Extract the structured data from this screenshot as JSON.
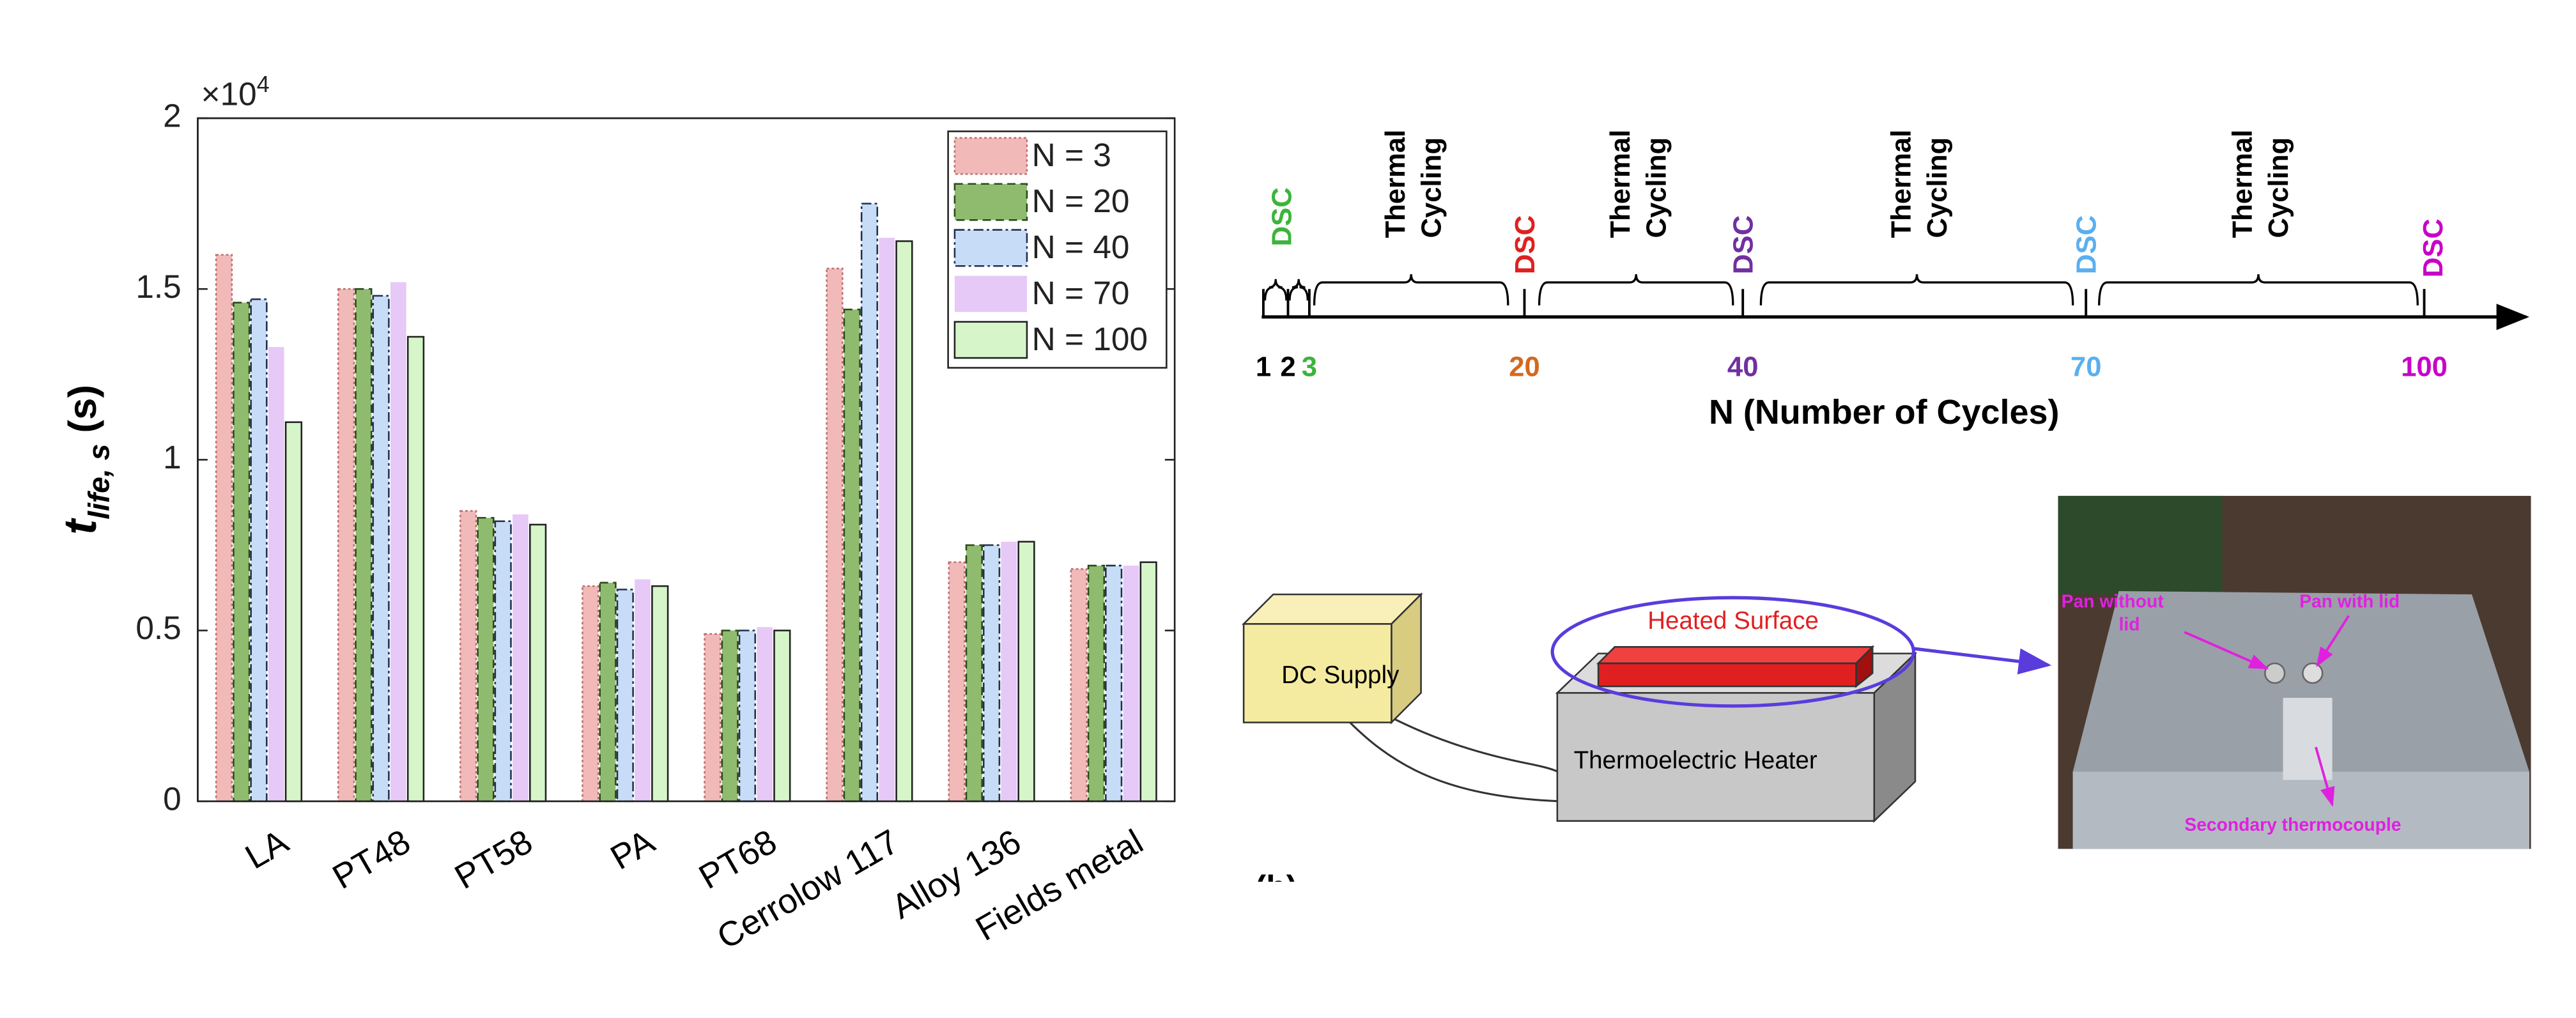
{
  "chart_data": {
    "type": "bar",
    "ylabel": {
      "main": "t",
      "sub": "life, s",
      "unit": " (s)"
    },
    "y_multiplier": {
      "base": "×10",
      "exponent": "4"
    },
    "categories": [
      "LA",
      "PT48",
      "PT58",
      "PA",
      "PT68",
      "Cerrolow 117",
      "Alloy 136",
      "Fields metal"
    ],
    "series": [
      {
        "name": "N = 3",
        "color": "#f2b9b9",
        "edge": "#c07070",
        "line_style": "dotted",
        "values": [
          1.6,
          1.5,
          0.85,
          0.63,
          0.49,
          1.56,
          0.7,
          0.68
        ]
      },
      {
        "name": "N = 20",
        "color": "#8fbb6e",
        "edge": "#2a4a1a",
        "line_style": "dashed",
        "values": [
          1.46,
          1.5,
          0.83,
          0.64,
          0.5,
          1.44,
          0.75,
          0.69
        ]
      },
      {
        "name": "N = 40",
        "color": "#c7dcf6",
        "edge": "#203050",
        "line_style": "dashdot",
        "values": [
          1.47,
          1.48,
          0.82,
          0.62,
          0.5,
          1.75,
          0.75,
          0.69
        ]
      },
      {
        "name": "N = 70",
        "color": "#e6c9f7",
        "edge": "#e6c9f7",
        "line_style": "none",
        "values": [
          1.33,
          1.52,
          0.84,
          0.65,
          0.51,
          1.65,
          0.76,
          0.69
        ]
      },
      {
        "name": "N = 100",
        "color": "#d6f5c9",
        "edge": "#222222",
        "line_style": "solid",
        "values": [
          1.11,
          1.36,
          0.81,
          0.63,
          0.5,
          1.64,
          0.76,
          0.7
        ]
      }
    ],
    "ylim": [
      0,
      2
    ],
    "yticks": [
      0,
      0.5,
      1,
      1.5,
      2
    ],
    "legend": "upper right",
    "grid": false
  },
  "timeline": {
    "xlabel": "N (Number of Cycles)",
    "tick_labels": [
      "1",
      "2",
      "3",
      "20",
      "40",
      "70",
      "100"
    ],
    "tick_colors": [
      "#000000",
      "#000000",
      "#3cb43c",
      "#d2691e",
      "#7030a0",
      "#5aaff0",
      "#c800c8"
    ],
    "dsc_labels": [
      "DSC",
      "DSC",
      "DSC",
      "DSC",
      "DSC"
    ],
    "dsc_colors": [
      "#3cb43c",
      "#e02020",
      "#7030a0",
      "#5aaff0",
      "#c800c8"
    ],
    "cycling_labels": [
      [
        "Thermal",
        "Cycling"
      ],
      [
        "Thermal",
        "Cycling"
      ],
      [
        "Thermal",
        "Cycling"
      ],
      [
        "Thermal",
        "Cycling"
      ]
    ]
  },
  "schematic": {
    "supply": "DC Supply",
    "heater": "Thermoelectric Heater",
    "surface": "Heated Surface",
    "panel": "(b)"
  },
  "photo": {
    "pan_without_lid": [
      "Pan without",
      "lid"
    ],
    "pan_with_lid": "Pan with lid",
    "thermocouple": "Secondary thermocouple"
  }
}
